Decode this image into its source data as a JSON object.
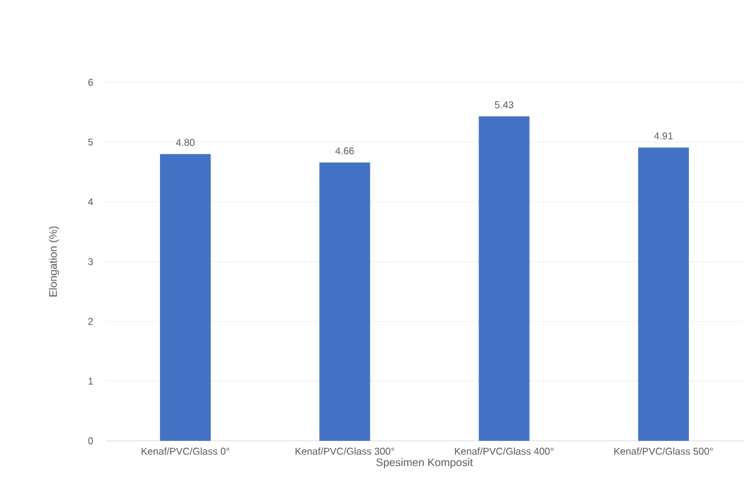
{
  "chart_data": {
    "type": "bar",
    "xlabel": "Spesimen Komposit",
    "ylabel": "Elongation (%)",
    "categories": [
      "Kenaf/PVC/Glass 0°",
      "Kenaf/PVC/Glass 300°",
      "Kenaf/PVC/Glass 400°",
      "Kenaf/PVC/Glass 500°"
    ],
    "values": [
      4.8,
      4.66,
      5.43,
      4.91
    ],
    "value_labels": [
      "4.80",
      "4.66",
      "5.43",
      "4.91"
    ],
    "color": "#4472c4",
    "ylim": [
      0,
      6
    ],
    "yticks": [
      0,
      1,
      2,
      3,
      4,
      5,
      6
    ],
    "grid": "y"
  }
}
